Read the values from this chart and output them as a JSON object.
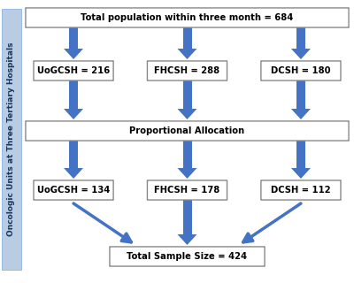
{
  "bg_color": "#ffffff",
  "box_edge_color": "#888888",
  "arrow_color": "#4472c4",
  "side_label_bg": "#b8cce4",
  "side_label_text": "Oncologic Units at Three Tertiary Hospitals",
  "side_label_color": "#1a3560",
  "top_box_text": "Total population within three month = 684",
  "middle_box_text": "Proportional Allocation",
  "bottom_box_text": "Total Sample Size = 424",
  "row1_labels": [
    "UoGCSH = 216",
    "FHCSH = 288",
    "DCSH = 180"
  ],
  "row2_labels": [
    "UoGCSH = 134",
    "FHCSH = 178",
    "DCSH = 112"
  ],
  "font_size": 7.2,
  "font_size_side": 6.5
}
